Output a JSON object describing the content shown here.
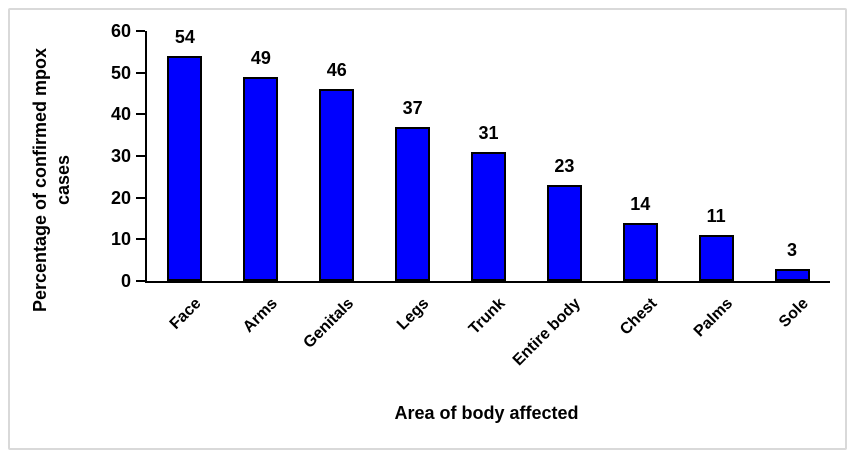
{
  "chart_data": {
    "type": "bar",
    "title": "",
    "categories": [
      "Face",
      "Arms",
      "Genitals",
      "Legs",
      "Trunk",
      "Entire body",
      "Chest",
      "Palms",
      "Sole"
    ],
    "values": [
      54,
      49,
      46,
      37,
      31,
      23,
      14,
      11,
      3
    ],
    "xlabel": "Area of body affected",
    "ylabel": "Percentage of confirmed mpox cases",
    "ylabel_lines": [
      "Percentage of confirmed mpox",
      "cases"
    ],
    "ylim": [
      0,
      60
    ],
    "yticks": [
      0,
      10,
      20,
      30,
      40,
      50,
      60
    ],
    "grid": "off",
    "legend": "none",
    "data_labels": "above-bars",
    "colors": {
      "bar_fill": "#0000fe",
      "bar_border": "#000000",
      "axis": "#000000",
      "text": "#000000",
      "frame_border": "#d9d9d9",
      "background": "#ffffff"
    }
  }
}
